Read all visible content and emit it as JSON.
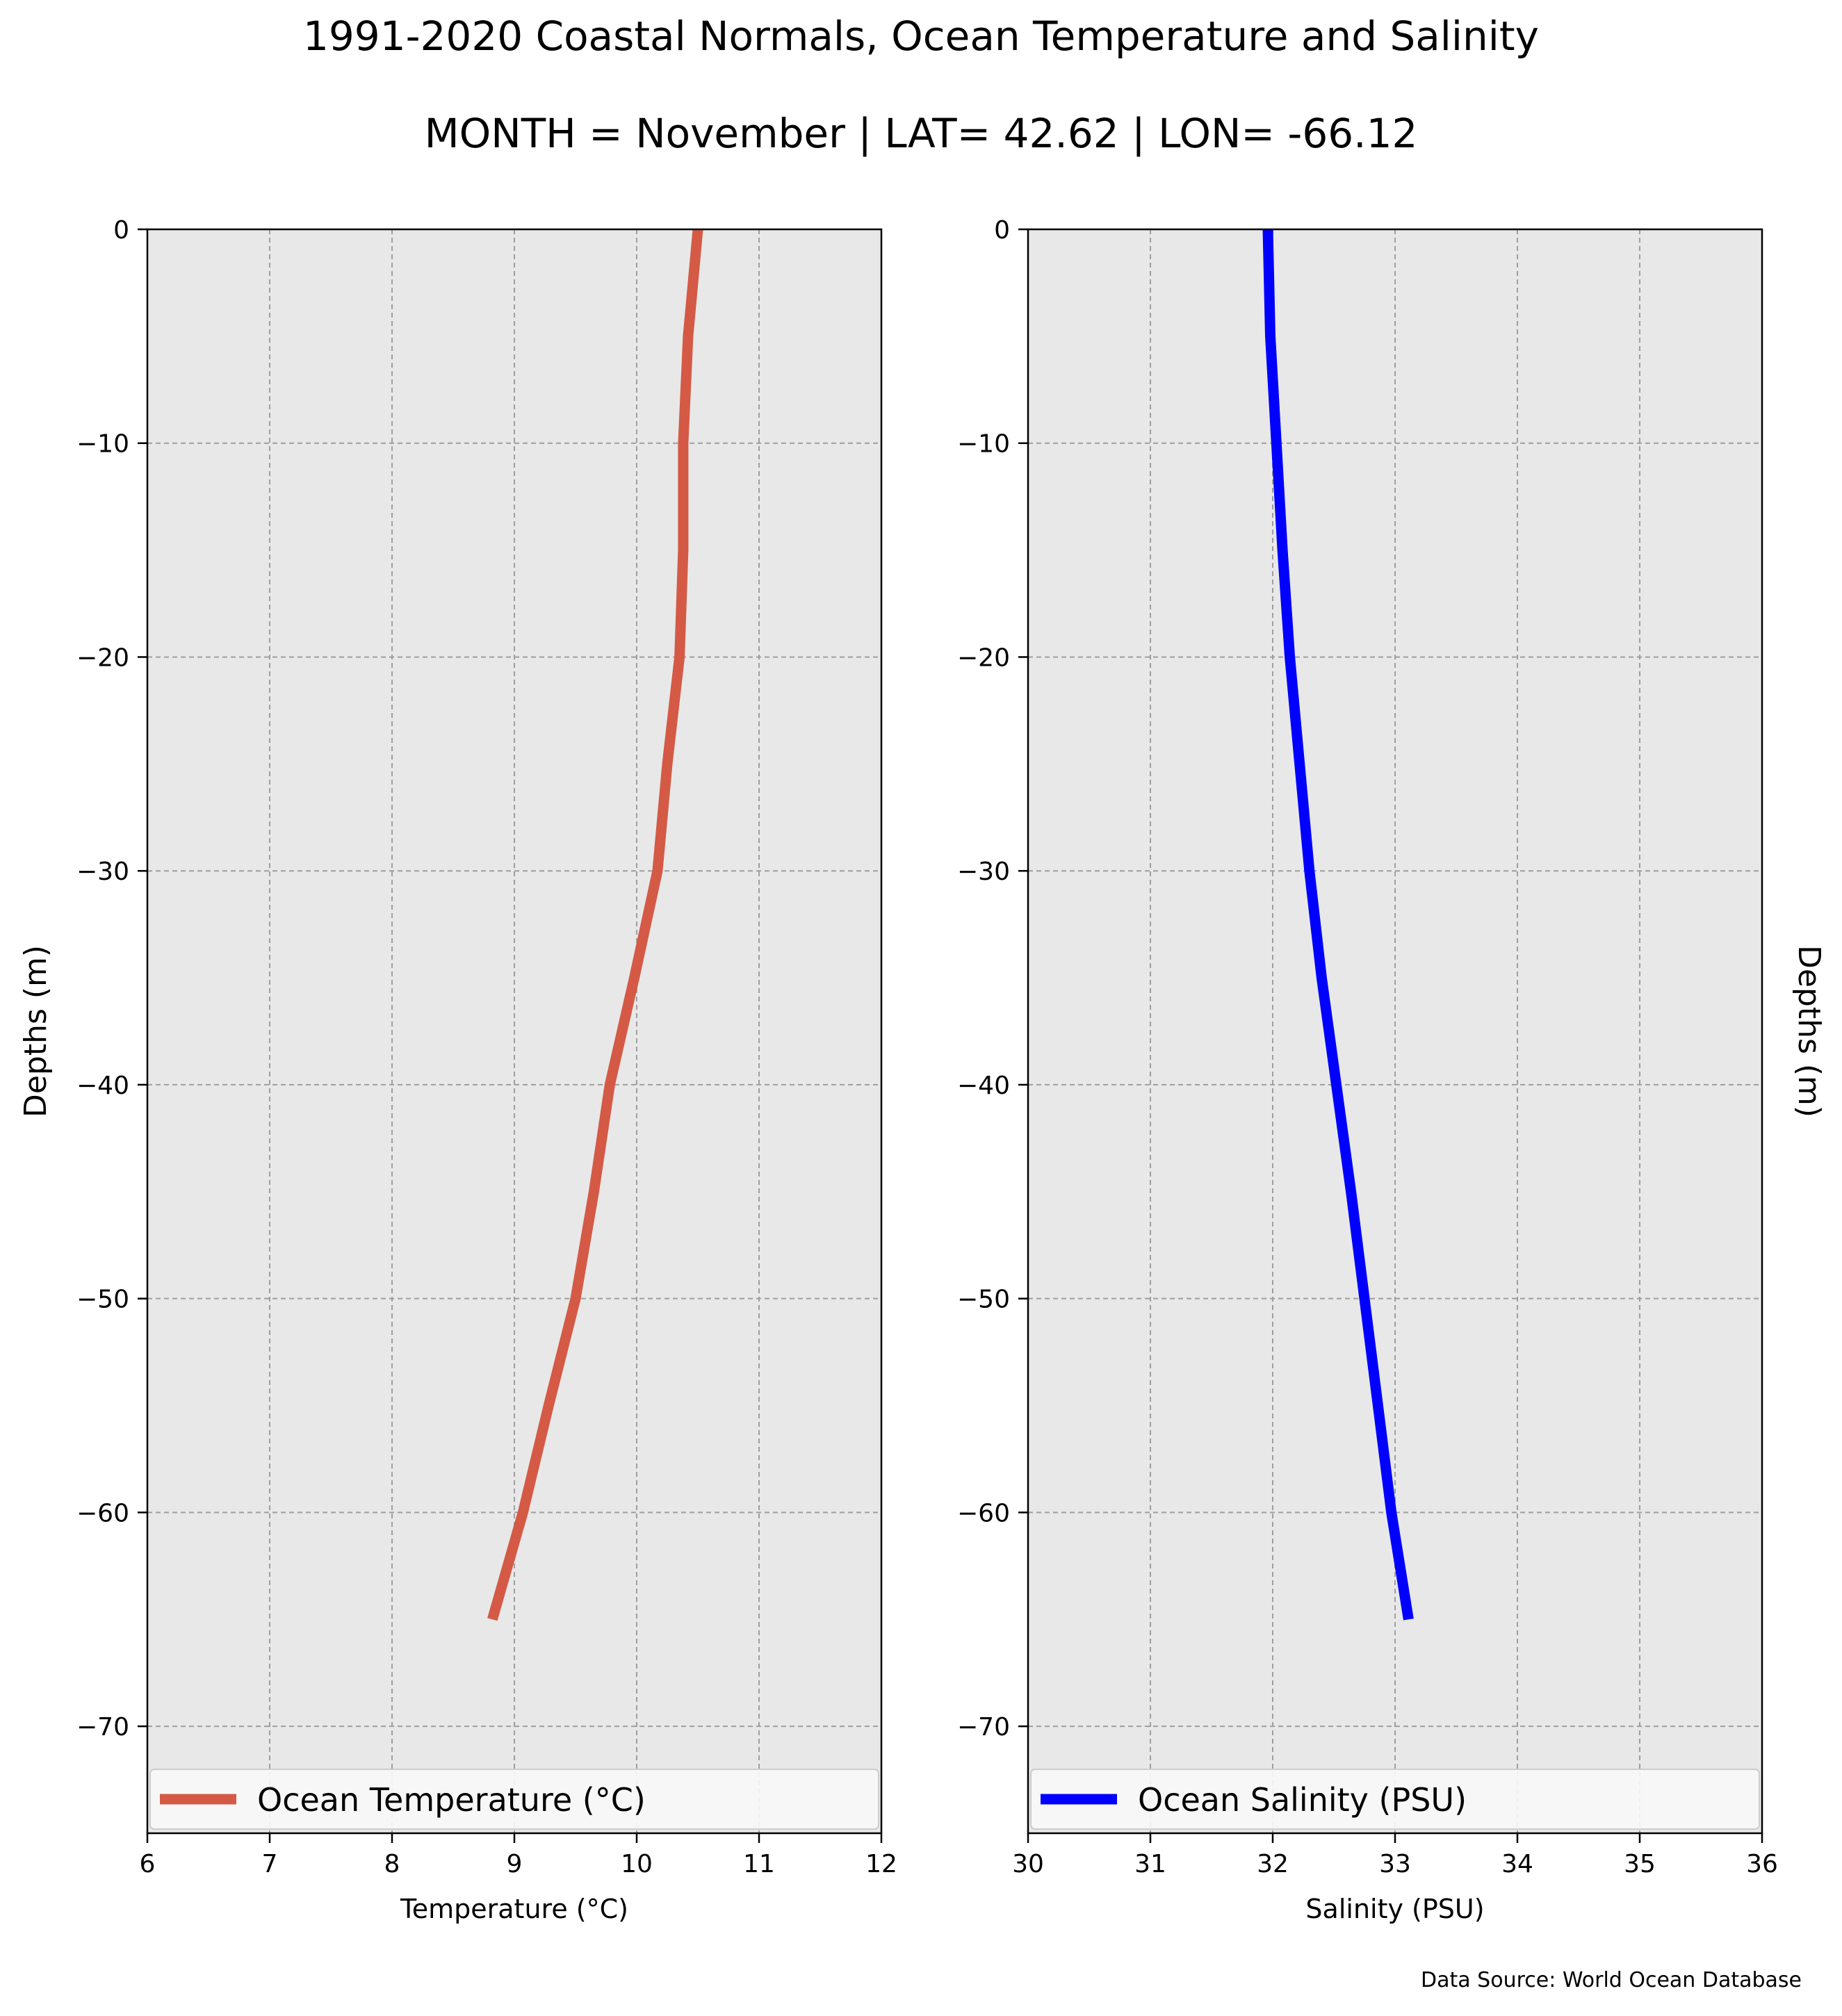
{
  "figure": {
    "title": "1991-2020 Coastal Normals, Ocean Temperature and Salinity",
    "subtitle": "MONTH = November | LAT= 42.62 | LON= -66.12",
    "source_note": "Data Source: World Ocean Database"
  },
  "colors": {
    "axes_background": "#e8e8e8",
    "grid": "#9e9e9e",
    "temperature_line": "#d45a46",
    "salinity_line": "#0000ff"
  },
  "chart_data": [
    {
      "type": "line",
      "title": "",
      "xlabel": "Temperature (°C)",
      "ylabel": "Depths (m)",
      "ylabel_side": "left",
      "xlim": [
        6,
        12
      ],
      "ylim": [
        -75,
        0
      ],
      "xticks": [
        6,
        7,
        8,
        9,
        10,
        11,
        12
      ],
      "yticks": [
        0,
        -10,
        -20,
        -30,
        -40,
        -50,
        -60,
        -70
      ],
      "xtick_labels": [
        "6",
        "7",
        "8",
        "9",
        "10",
        "11",
        "12"
      ],
      "ytick_labels": [
        "0",
        "−10",
        "−20",
        "−30",
        "−40",
        "−50",
        "−60",
        "−70"
      ],
      "grid": true,
      "legend": "bottom",
      "series": [
        {
          "name": "Ocean Temperature (°C)",
          "color": "#d45a46",
          "x": [
            10.5,
            10.42,
            10.38,
            10.38,
            10.35,
            10.25,
            10.17,
            9.98,
            9.78,
            9.65,
            9.5,
            9.28,
            9.07,
            8.82
          ],
          "y": [
            0,
            -5,
            -10,
            -15,
            -20,
            -25,
            -30,
            -35,
            -40,
            -45,
            -50,
            -55,
            -60,
            -65
          ]
        }
      ]
    },
    {
      "type": "line",
      "title": "",
      "xlabel": "Salinity (PSU)",
      "ylabel": "Depths (m)",
      "ylabel_side": "right",
      "xlim": [
        30,
        36
      ],
      "ylim": [
        -75,
        0
      ],
      "xticks": [
        30,
        31,
        32,
        33,
        34,
        35,
        36
      ],
      "yticks": [
        0,
        -10,
        -20,
        -30,
        -40,
        -50,
        -60,
        -70
      ],
      "xtick_labels": [
        "30",
        "31",
        "32",
        "33",
        "34",
        "35",
        "36"
      ],
      "ytick_labels": [
        "0",
        "−10",
        "−20",
        "−30",
        "−40",
        "−50",
        "−60",
        "−70"
      ],
      "grid": true,
      "legend": "bottom",
      "series": [
        {
          "name": "Ocean Salinity (PSU)",
          "color": "#0000ff",
          "x": [
            31.96,
            31.98,
            32.03,
            32.08,
            32.14,
            32.22,
            32.3,
            32.4,
            32.52,
            32.64,
            32.75,
            32.86,
            32.97,
            33.11
          ],
          "y": [
            0,
            -5,
            -10,
            -15,
            -20,
            -25,
            -30,
            -35,
            -40,
            -45,
            -50,
            -55,
            -60,
            -65
          ]
        }
      ]
    }
  ]
}
